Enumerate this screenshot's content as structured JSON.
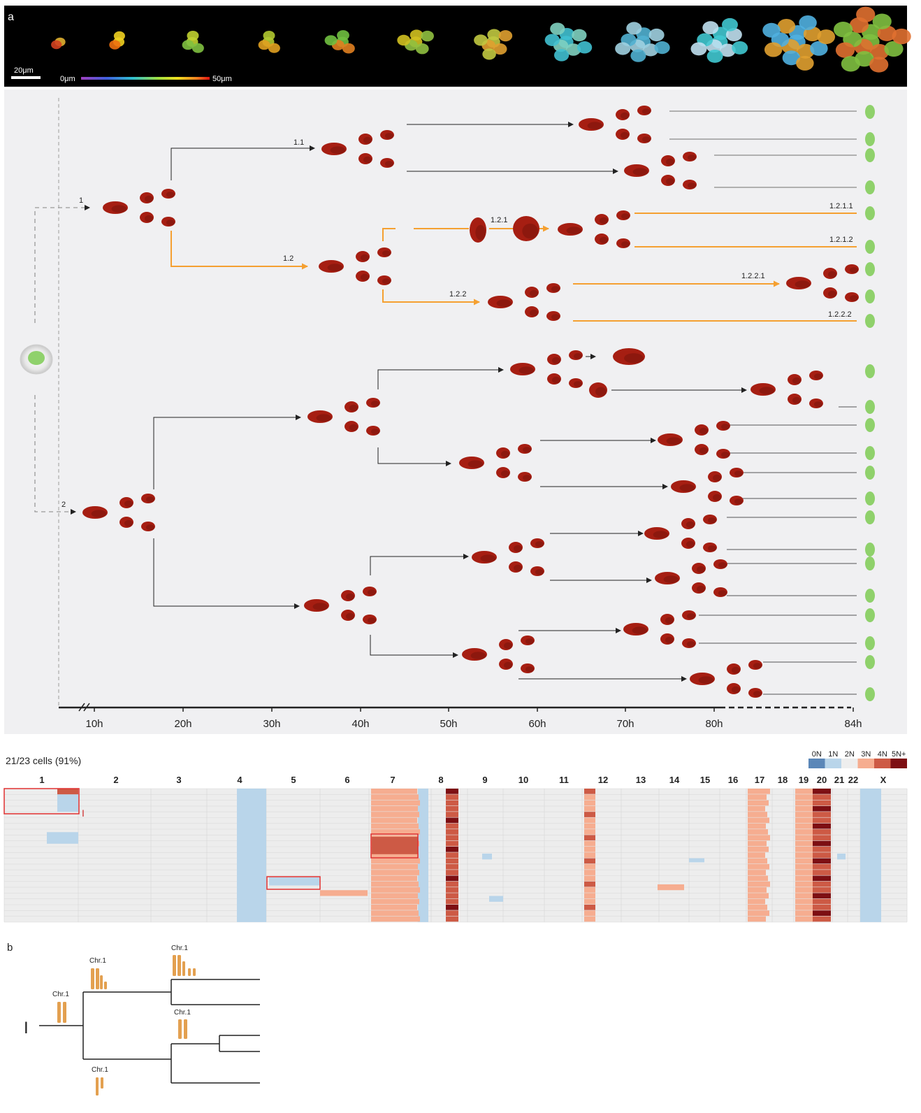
{
  "panel_a": {
    "panel_letter": "a",
    "scale_bar_label": "20μm",
    "depth_scale": {
      "min_label": "0μm",
      "max_label": "50μm"
    },
    "lineage_labels": [
      {
        "id": "1",
        "text": "1"
      },
      {
        "id": "2",
        "text": "2"
      },
      {
        "id": "1.1",
        "text": "1.1"
      },
      {
        "id": "1.2",
        "text": "1.2"
      },
      {
        "id": "1.2.1",
        "text": "1.2.1"
      },
      {
        "id": "1.2.2",
        "text": "1.2.2"
      },
      {
        "id": "1.2.1.1",
        "text": "1.2.1.1"
      },
      {
        "id": "1.2.1.2",
        "text": "1.2.1.2"
      },
      {
        "id": "1.2.2.1",
        "text": "1.2.2.1"
      },
      {
        "id": "1.2.2.2",
        "text": "1.2.2.2"
      }
    ],
    "time_ticks": [
      "10h",
      "20h",
      "30h",
      "40h",
      "50h",
      "60h",
      "70h",
      "80h",
      "84h"
    ],
    "highlight_color": "#f5a031",
    "cell_color": "#a61e12",
    "endpoint_color": "#8fd16b"
  },
  "panel_heatmap": {
    "title": "21/23 cells (91%)",
    "legend": [
      {
        "label": "0N",
        "color": "#5b87b8"
      },
      {
        "label": "1N",
        "color": "#b9d5ea"
      },
      {
        "label": "2N",
        "color": "#eeeeee"
      },
      {
        "label": "3N",
        "color": "#f6ad90"
      },
      {
        "label": "4N",
        "color": "#cd5a45"
      },
      {
        "label": "5N+",
        "color": "#7d0f13"
      }
    ],
    "chromosomes": [
      "1",
      "2",
      "3",
      "4",
      "5",
      "6",
      "7",
      "8",
      "9",
      "10",
      "11",
      "12",
      "13",
      "14",
      "15",
      "16",
      "17",
      "18",
      "19",
      "20",
      "21",
      "22",
      "X"
    ],
    "marker_label": "I"
  },
  "panel_b": {
    "panel_letter": "b",
    "root_label": "I",
    "chr_label": "Chr.1"
  }
}
